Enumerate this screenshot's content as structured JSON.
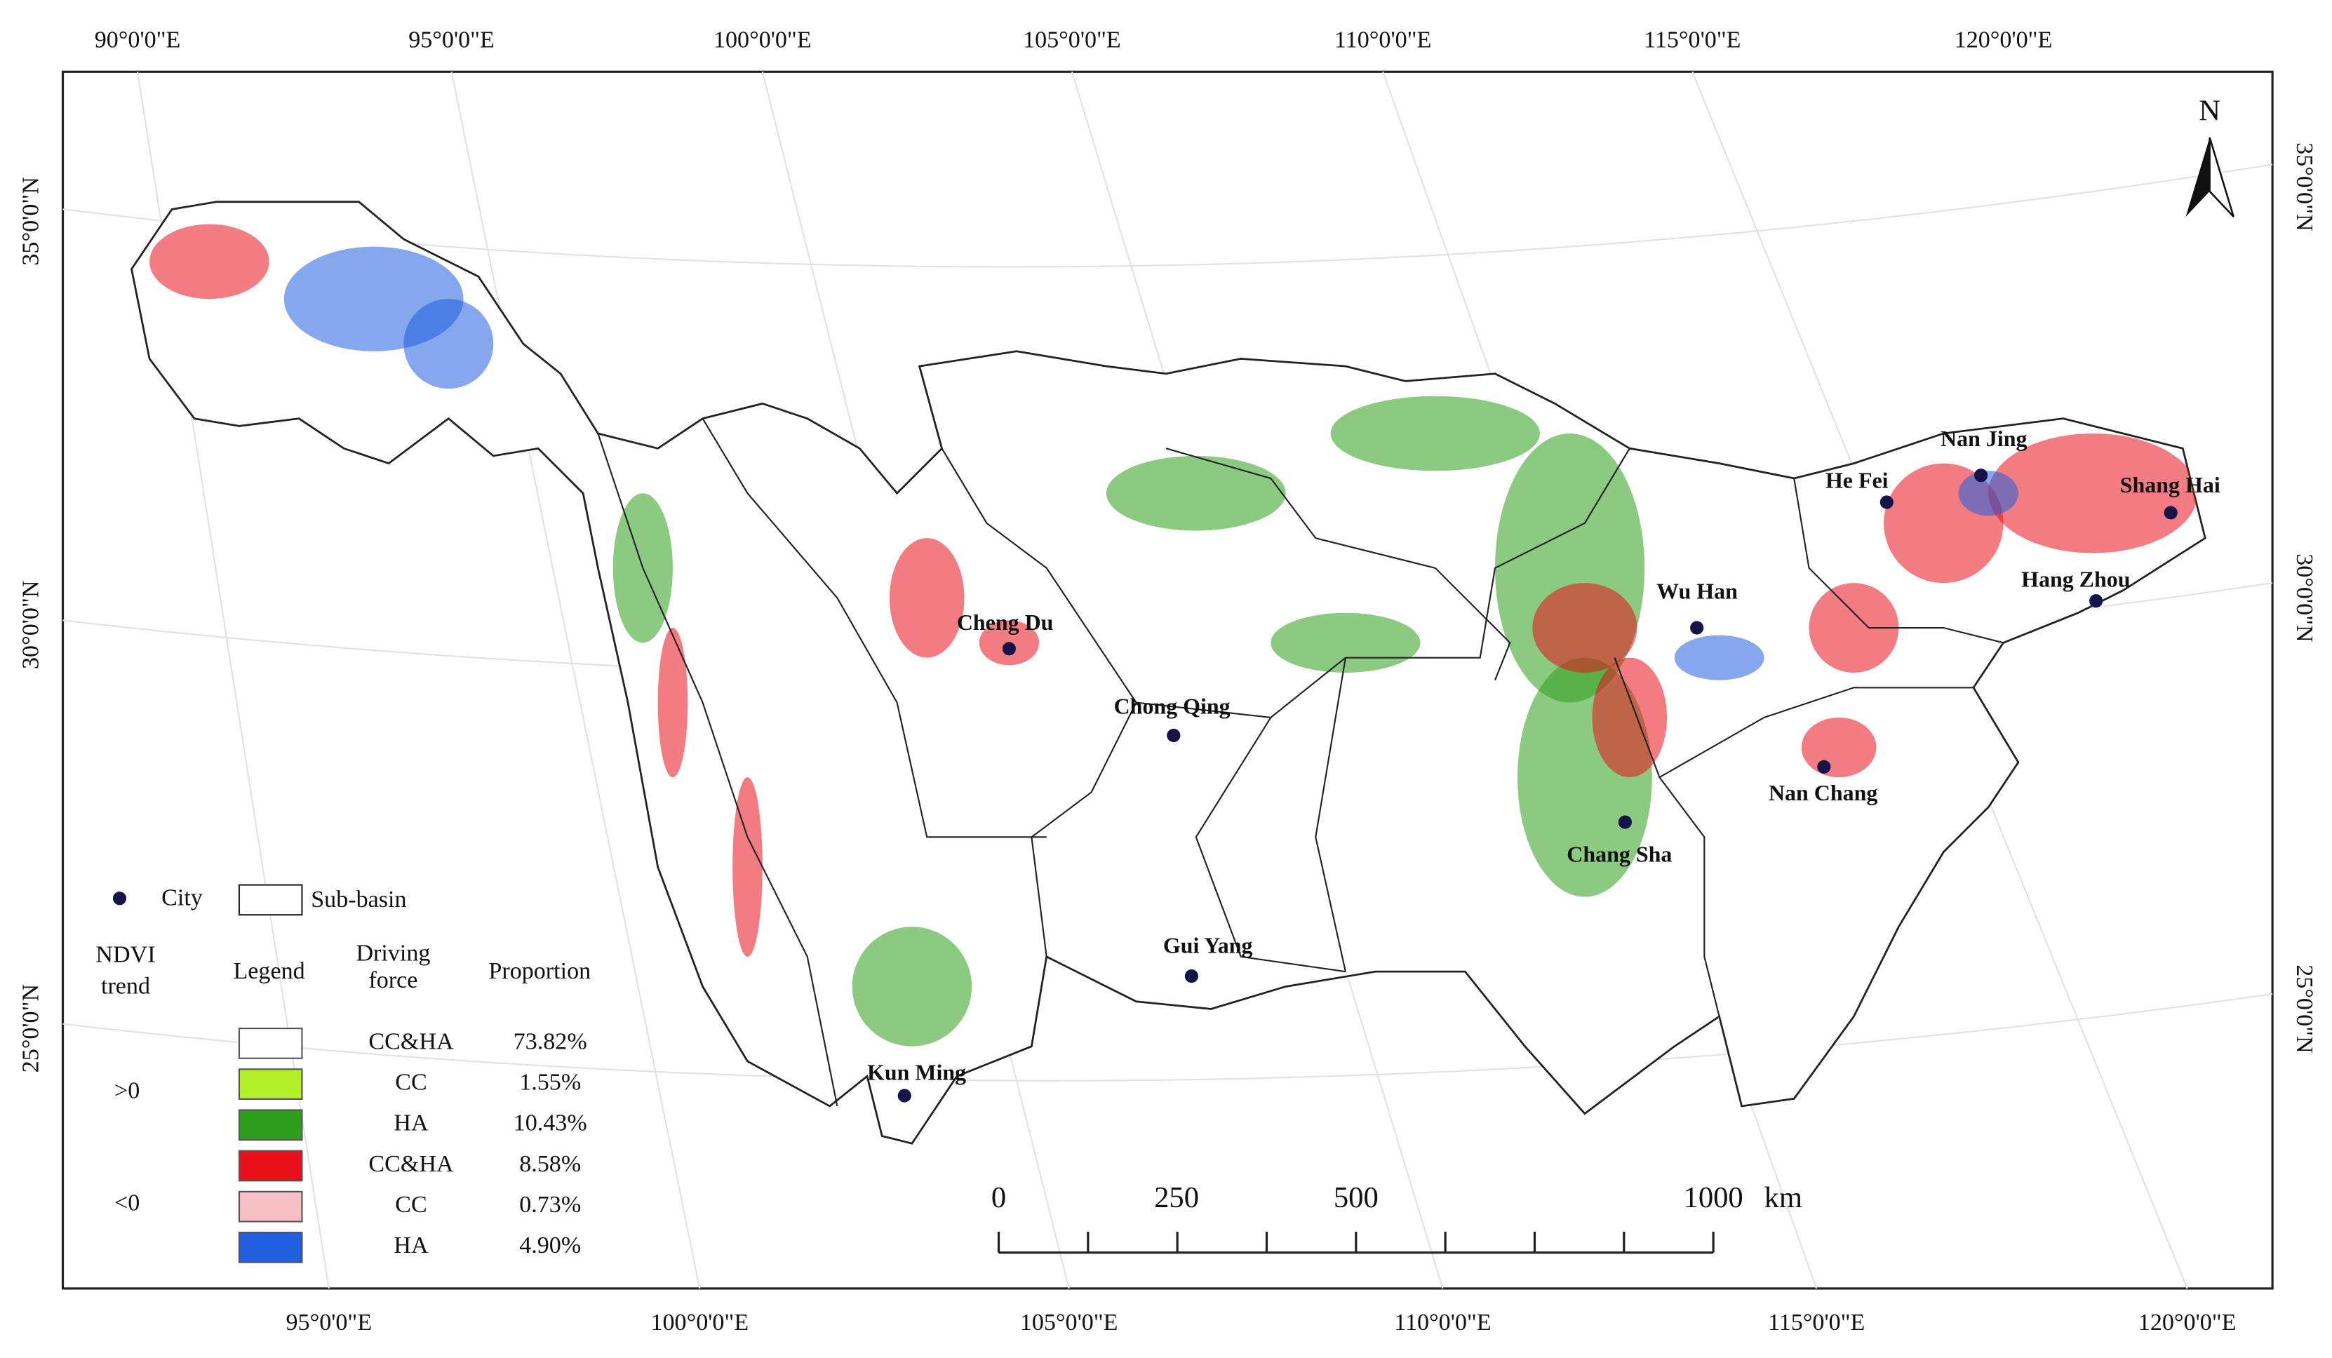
{
  "graticule": {
    "top_labels": [
      "90°0'0\"E",
      "95°0'0\"E",
      "100°0'0\"E",
      "105°0'0\"E",
      "110°0'0\"E",
      "115°0'0\"E",
      "120°0'0\"E"
    ],
    "bottom_labels": [
      "95°0'0\"E",
      "100°0'0\"E",
      "105°0'0\"E",
      "110°0'0\"E",
      "115°0'0\"E",
      "120°0'0\"E"
    ],
    "left_labels": [
      "35°0'0\"N",
      "30°0'0\"N",
      "25°0'0\"N"
    ],
    "right_labels": [
      "35°0'0\"N",
      "30°0'0\"N",
      "25°0'0\"N"
    ]
  },
  "north": "N",
  "cities": [
    "Cheng Du",
    "Chong Qing",
    "Gui Yang",
    "Kun Ming",
    "Wu Han",
    "Chang Sha",
    "Nan Chang",
    "He Fei",
    "Nan Jing",
    "Shang Hai",
    "Hang Zhou"
  ],
  "legend": {
    "city": "City",
    "sub_basin": "Sub-basin",
    "headers": {
      "ndvi_trend": [
        "NDVI",
        "trend"
      ],
      "legend": "Legend",
      "driving_force": [
        "Driving",
        "force"
      ],
      "proportion": "Proportion"
    },
    "groups": [
      {
        "trend": ">0",
        "rows": [
          {
            "force": "CC&HA",
            "proportion": "73.82%",
            "color": "#ffffff"
          },
          {
            "force": "CC",
            "proportion": "1.55%",
            "color": "#b4f02a"
          },
          {
            "force": "HA",
            "proportion": "10.43%",
            "color": "#2e9e1c"
          }
        ]
      },
      {
        "trend": "<0",
        "rows": [
          {
            "force": "CC&HA",
            "proportion": "8.58%",
            "color": "#e8101a"
          },
          {
            "force": "CC",
            "proportion": "0.73%",
            "color": "#f7c0c4"
          },
          {
            "force": "HA",
            "proportion": "4.90%",
            "color": "#1f5fe0"
          }
        ]
      }
    ]
  },
  "scale_bar": {
    "labels": [
      "0",
      "250",
      "500",
      "1000"
    ],
    "unit": "km"
  }
}
